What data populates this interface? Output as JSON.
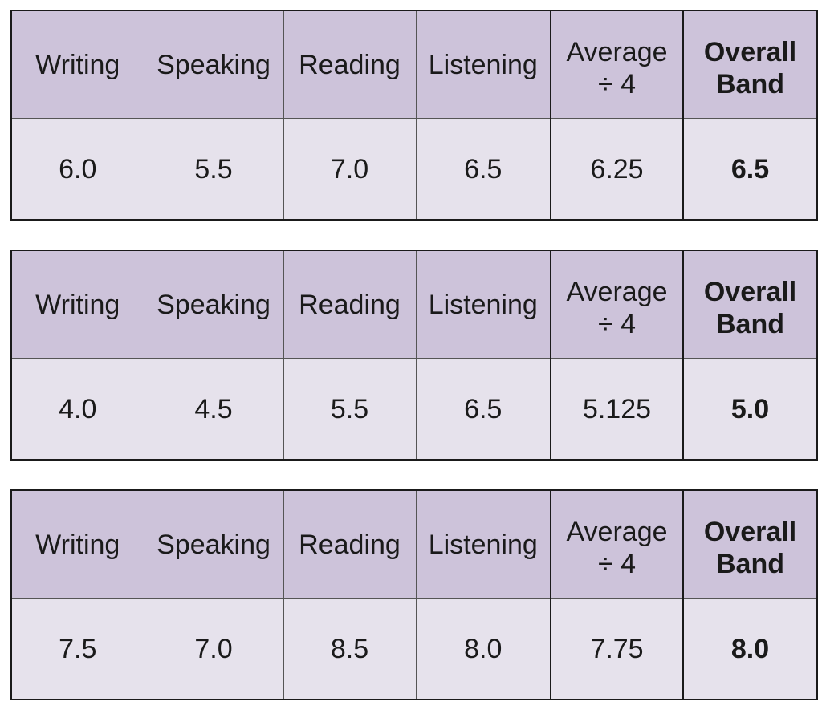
{
  "headers": {
    "writing": "Writing",
    "speaking": "Speaking",
    "reading": "Reading",
    "listening": "Listening",
    "average_line1": "Average",
    "average_line2": "÷ 4",
    "overall_line1": "Overall",
    "overall_line2": "Band"
  },
  "tables": [
    {
      "writing": "6.0",
      "speaking": "5.5",
      "reading": "7.0",
      "listening": "6.5",
      "average": "6.25",
      "overall": "6.5"
    },
    {
      "writing": "4.0",
      "speaking": "4.5",
      "reading": "5.5",
      "listening": "6.5",
      "average": "5.125",
      "overall": "5.0"
    },
    {
      "writing": "7.5",
      "speaking": "7.0",
      "reading": "8.5",
      "listening": "8.0",
      "average": "7.75",
      "overall": "8.0"
    }
  ]
}
